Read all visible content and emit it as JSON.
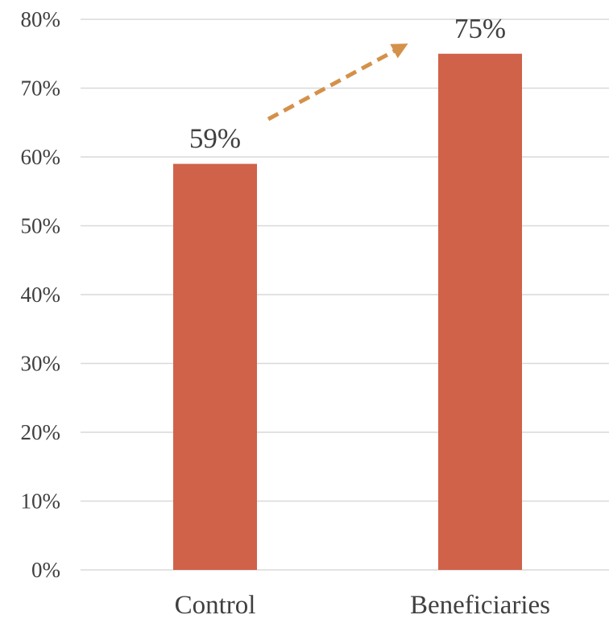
{
  "chart_data": {
    "type": "bar",
    "title": "",
    "xlabel": "",
    "ylabel": "",
    "categories": [
      "Control",
      "Beneficiaries"
    ],
    "values": [
      59,
      75
    ],
    "data_labels": [
      "59%",
      "75%"
    ],
    "ylim": [
      0,
      80
    ],
    "yticks": [
      0,
      10,
      20,
      30,
      40,
      50,
      60,
      70,
      80
    ],
    "ytick_labels": [
      "0%",
      "10%",
      "20%",
      "30%",
      "40%",
      "50%",
      "60%",
      "70%",
      "80%"
    ],
    "grid": true,
    "legend": "none",
    "annotation": {
      "type": "dashed-arrow",
      "from_category": "Control",
      "to_category": "Beneficiaries"
    },
    "colors": {
      "bar": "#D0624A",
      "arrow": "#D4914A",
      "grid": "#D9D9D9",
      "text": "#404040"
    }
  }
}
